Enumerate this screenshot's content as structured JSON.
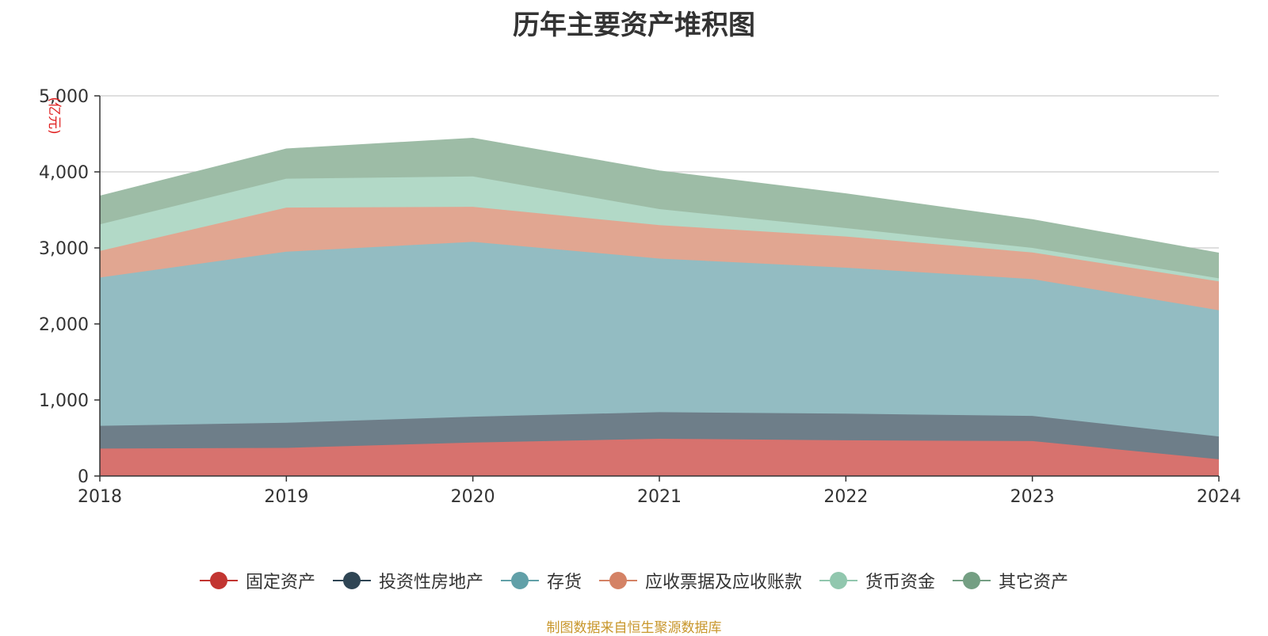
{
  "chart_data": {
    "type": "area",
    "stacked": true,
    "title": "历年主要资产堆积图",
    "unit_label": "(亿元)",
    "x": [
      "2018",
      "2019",
      "2020",
      "2021",
      "2022",
      "2023",
      "2024"
    ],
    "ylim": [
      0,
      5000
    ],
    "yticks": [
      0,
      1000,
      2000,
      3000,
      4000,
      5000
    ],
    "ytick_labels": [
      "0",
      "1,000",
      "2,000",
      "3,000",
      "4,000",
      "5,000"
    ],
    "grid": true,
    "legend_position": "bottom",
    "series": [
      {
        "name": "固定资产",
        "color": "#d7726e",
        "legend_color": "#c23531",
        "values": [
          360,
          370,
          440,
          490,
          470,
          460,
          220
        ]
      },
      {
        "name": "投资性房地产",
        "color": "#6e7e89",
        "legend_color": "#2f4554",
        "values": [
          300,
          330,
          340,
          350,
          350,
          330,
          300
        ]
      },
      {
        "name": "存货",
        "color": "#93bcc2",
        "legend_color": "#61a0a8",
        "values": [
          1950,
          2250,
          2300,
          2020,
          1920,
          1800,
          1660
        ]
      },
      {
        "name": "应收票据及应收账款",
        "color": "#e1a691",
        "legend_color": "#d48265",
        "values": [
          350,
          580,
          460,
          440,
          410,
          350,
          380
        ]
      },
      {
        "name": "货币资金",
        "color": "#b2d9c7",
        "legend_color": "#91c7ae",
        "values": [
          350,
          380,
          400,
          210,
          110,
          60,
          40
        ]
      },
      {
        "name": "其它资产",
        "color": "#9dbca6",
        "legend_color": "#749f83",
        "values": [
          370,
          390,
          500,
          500,
          450,
          370,
          330
        ]
      }
    ],
    "source": "制图数据来自恒生聚源数据库"
  }
}
